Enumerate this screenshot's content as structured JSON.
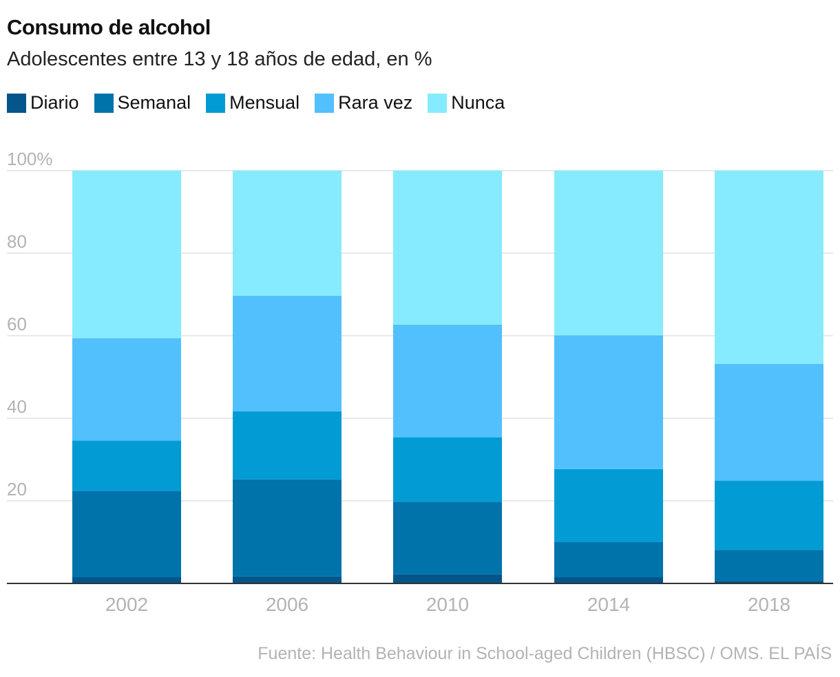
{
  "title": "Consumo de alcohol",
  "subtitle": "Adolescentes entre 13 y 18 años de edad, en %",
  "source": "Fuente: Health Behaviour in School-aged Children (HBSC) / OMS. EL PAÍS",
  "colors": {
    "Diario": "#03558a",
    "Semanal": "#0073aa",
    "Mensual": "#039bd4",
    "Rara vez": "#51c0fd",
    "Nunca": "#86ebfe",
    "grid": "#e0e0e0",
    "axis": "#333333",
    "tick": "#b3b3b3"
  },
  "chart_data": {
    "type": "bar",
    "stacked": true,
    "title": "Consumo de alcohol",
    "subtitle": "Adolescentes entre 13 y 18 años de edad, en %",
    "xlabel": "",
    "ylabel": "",
    "ylim": [
      0,
      100
    ],
    "yticks": [
      {
        "value": 20,
        "label": "20"
      },
      {
        "value": 40,
        "label": "40"
      },
      {
        "value": 60,
        "label": "60"
      },
      {
        "value": 80,
        "label": "80"
      },
      {
        "value": 100,
        "label": "100%"
      }
    ],
    "grid": true,
    "legend": "top-left",
    "categories": [
      "2002",
      "2006",
      "2010",
      "2014",
      "2018"
    ],
    "series": [
      {
        "name": "Diario",
        "values": [
          1.5,
          1.7,
          2.2,
          1.5,
          0.6
        ]
      },
      {
        "name": "Semanal",
        "values": [
          20.9,
          23.5,
          17.6,
          8.5,
          7.5
        ]
      },
      {
        "name": "Mensual",
        "values": [
          12.2,
          16.5,
          15.6,
          17.7,
          16.8
        ]
      },
      {
        "name": "Rara vez",
        "values": [
          24.8,
          28.0,
          27.3,
          32.4,
          28.3
        ]
      },
      {
        "name": "Nunca",
        "values": [
          40.6,
          30.3,
          37.3,
          39.9,
          46.8
        ]
      }
    ]
  }
}
